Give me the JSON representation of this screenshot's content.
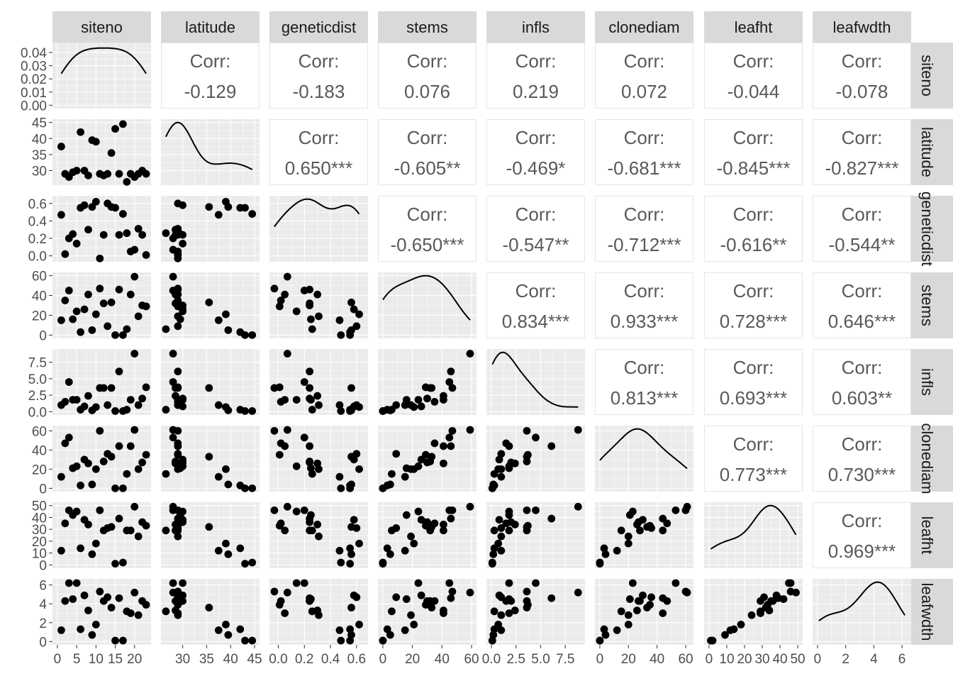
{
  "chart_data": {
    "type": "scatter",
    "variables": [
      "siteno",
      "latitude",
      "geneticdist",
      "stems",
      "infls",
      "clonediam",
      "leafht",
      "leafwdth"
    ],
    "labels": {
      "corr_prefix": "Corr:"
    },
    "correlations": [
      {
        "row": 0,
        "col": 1,
        "value": "-0.129"
      },
      {
        "row": 0,
        "col": 2,
        "value": "-0.183"
      },
      {
        "row": 0,
        "col": 3,
        "value": "0.076"
      },
      {
        "row": 0,
        "col": 4,
        "value": "0.219"
      },
      {
        "row": 0,
        "col": 5,
        "value": "0.072"
      },
      {
        "row": 0,
        "col": 6,
        "value": "-0.044"
      },
      {
        "row": 0,
        "col": 7,
        "value": "-0.078"
      },
      {
        "row": 1,
        "col": 2,
        "value": "0.650***"
      },
      {
        "row": 1,
        "col": 3,
        "value": "-0.605**"
      },
      {
        "row": 1,
        "col": 4,
        "value": "-0.469*"
      },
      {
        "row": 1,
        "col": 5,
        "value": "-0.681***"
      },
      {
        "row": 1,
        "col": 6,
        "value": "-0.845***"
      },
      {
        "row": 1,
        "col": 7,
        "value": "-0.827***"
      },
      {
        "row": 2,
        "col": 3,
        "value": "-0.650***"
      },
      {
        "row": 2,
        "col": 4,
        "value": "-0.547**"
      },
      {
        "row": 2,
        "col": 5,
        "value": "-0.712***"
      },
      {
        "row": 2,
        "col": 6,
        "value": "-0.616**"
      },
      {
        "row": 2,
        "col": 7,
        "value": "-0.544**"
      },
      {
        "row": 3,
        "col": 4,
        "value": "0.834***"
      },
      {
        "row": 3,
        "col": 5,
        "value": "0.933***"
      },
      {
        "row": 3,
        "col": 6,
        "value": "0.728***"
      },
      {
        "row": 3,
        "col": 7,
        "value": "0.646***"
      },
      {
        "row": 4,
        "col": 5,
        "value": "0.813***"
      },
      {
        "row": 4,
        "col": 6,
        "value": "0.693***"
      },
      {
        "row": 4,
        "col": 7,
        "value": "0.603**"
      },
      {
        "row": 5,
        "col": 6,
        "value": "0.773***"
      },
      {
        "row": 5,
        "col": 7,
        "value": "0.730***"
      },
      {
        "row": 6,
        "col": 7,
        "value": "0.969***"
      }
    ],
    "axes": {
      "siteno": {
        "lim": [
          0,
          23
        ],
        "x_ticks": [
          0,
          5,
          10,
          15,
          20
        ],
        "x_tick_labels": [
          "0",
          "5",
          "10",
          "15",
          "20"
        ]
      },
      "latitude": {
        "lim": [
          26.5,
          45
        ],
        "x_ticks": [
          30,
          35,
          40,
          45
        ],
        "x_tick_labels": [
          "30",
          "35",
          "40",
          "45"
        ],
        "y_ticks": [
          30,
          35,
          40,
          45
        ],
        "y_tick_labels": [
          "30",
          "35",
          "40",
          "45"
        ]
      },
      "geneticdist": {
        "lim": [
          -0.03,
          0.65
        ],
        "x_ticks": [
          0,
          0.2,
          0.4,
          0.6
        ],
        "x_tick_labels": [
          "0.0",
          "0.2",
          "0.4",
          "0.6"
        ],
        "y_ticks": [
          0,
          0.2,
          0.4,
          0.6
        ],
        "y_tick_labels": [
          "0.0",
          "0.2",
          "0.4",
          "0.6"
        ]
      },
      "stems": {
        "lim": [
          0,
          60
        ],
        "x_ticks": [
          0,
          20,
          40,
          60
        ],
        "x_tick_labels": [
          "0",
          "20",
          "40",
          "60"
        ],
        "y_ticks": [
          0,
          20,
          40,
          60
        ],
        "y_tick_labels": [
          "0",
          "20",
          "40",
          "60"
        ]
      },
      "infls": {
        "lim": [
          0,
          9
        ],
        "x_ticks": [
          0,
          2.5,
          5,
          7.5
        ],
        "x_tick_labels": [
          "0.0",
          "2.5",
          "5.0",
          "7.5"
        ],
        "y_ticks": [
          0,
          2.5,
          5,
          7.5
        ],
        "y_tick_labels": [
          "0.0",
          "2.5",
          "5.0",
          "7.5"
        ]
      },
      "clonediam": {
        "lim": [
          0,
          62
        ],
        "x_ticks": [
          0,
          20,
          40,
          60
        ],
        "x_tick_labels": [
          "0",
          "20",
          "40",
          "60"
        ],
        "y_ticks": [
          0,
          20,
          40,
          60
        ],
        "y_tick_labels": [
          "0",
          "20",
          "40",
          "60"
        ]
      },
      "leafht": {
        "lim": [
          0,
          50
        ],
        "x_ticks": [
          0,
          10,
          20,
          30,
          40,
          50
        ],
        "x_tick_labels": [
          "0",
          "10",
          "20",
          "30",
          "40",
          "50"
        ],
        "y_ticks": [
          0,
          10,
          20,
          30,
          40,
          50
        ],
        "y_tick_labels": [
          "0",
          "10",
          "20",
          "30",
          "40",
          "50"
        ]
      },
      "leafwdth": {
        "lim": [
          0,
          6.3
        ],
        "x_ticks": [
          0,
          2,
          4,
          6
        ],
        "x_tick_labels": [
          "0",
          "2",
          "4",
          "6"
        ],
        "y_ticks": [
          0,
          2,
          4,
          6
        ],
        "y_tick_labels": [
          "0",
          "2",
          "4",
          "6"
        ]
      }
    },
    "density_axis": {
      "lim": [
        0,
        0.045
      ],
      "ticks": [
        0,
        0.01,
        0.02,
        0.03,
        0.04
      ],
      "tick_labels": [
        "0.00",
        "0.01",
        "0.02",
        "0.03",
        "0.04"
      ]
    },
    "observations": [
      {
        "siteno": 1,
        "latitude": 37.5,
        "geneticdist": 0.47,
        "stems": 15,
        "infls": 1.0,
        "clonediam": 12,
        "leafht": 12,
        "leafwdth": 1.2
      },
      {
        "siteno": 2,
        "latitude": 29,
        "geneticdist": 0.02,
        "stems": 35,
        "infls": 1.5,
        "clonediam": 47,
        "leafht": 35,
        "leafwdth": 4.3
      },
      {
        "siteno": 3,
        "latitude": 28,
        "geneticdist": 0.2,
        "stems": 45,
        "infls": 4.5,
        "clonediam": 53,
        "leafht": 46,
        "leafwdth": 6.2
      },
      {
        "siteno": 4,
        "latitude": 29.5,
        "geneticdist": 0.25,
        "stems": 16,
        "infls": 1.8,
        "clonediam": 21,
        "leafht": 42,
        "leafwdth": 4.5
      },
      {
        "siteno": 5,
        "latitude": 30,
        "geneticdist": 0.14,
        "stems": 24,
        "infls": 1.8,
        "clonediam": 23,
        "leafht": 45,
        "leafwdth": 6.2
      },
      {
        "siteno": 6,
        "latitude": 42,
        "geneticdist": 0.55,
        "stems": 3,
        "infls": 0.3,
        "clonediam": 3,
        "leafht": 14,
        "leafwdth": 1.3
      },
      {
        "siteno": 7,
        "latitude": 30,
        "geneticdist": 0.58,
        "stems": 26,
        "infls": 0.8,
        "clonediam": 30,
        "leafht": 38,
        "leafwdth": 4.9
      },
      {
        "siteno": 8,
        "latitude": 28.5,
        "geneticdist": 0.3,
        "stems": 41,
        "infls": 2.4,
        "clonediam": 26,
        "leafht": 34,
        "leafwdth": 3.3
      },
      {
        "siteno": 9,
        "latitude": 39.5,
        "geneticdist": 0.56,
        "stems": 5,
        "infls": 0.2,
        "clonediam": 4,
        "leafht": 9,
        "leafwdth": 0.7
      },
      {
        "siteno": 10,
        "latitude": 39,
        "geneticdist": 0.62,
        "stems": 21,
        "infls": 0.7,
        "clonediam": 20,
        "leafht": 18,
        "leafwdth": 1.8
      },
      {
        "siteno": 11,
        "latitude": 29,
        "geneticdist": -0.03,
        "stems": 47,
        "infls": 3.6,
        "clonediam": 60,
        "leafht": 46,
        "leafwdth": 5.3
      },
      {
        "siteno": 12,
        "latitude": 28.5,
        "geneticdist": 0.24,
        "stems": 32,
        "infls": 3.6,
        "clonediam": 28,
        "leafht": 29,
        "leafwdth": 4.3
      },
      {
        "siteno": 13,
        "latitude": 29,
        "geneticdist": 0.6,
        "stems": 9,
        "infls": 1.0,
        "clonediam": 36,
        "leafht": 31,
        "leafwdth": 4.7
      },
      {
        "siteno": 14,
        "latitude": 35.5,
        "geneticdist": 0.56,
        "stems": 33,
        "infls": 3.6,
        "clonediam": 33,
        "leafht": 32,
        "leafwdth": 3.6
      },
      {
        "siteno": 15,
        "latitude": 43,
        "geneticdist": 0.55,
        "stems": 0,
        "infls": 0.1,
        "clonediam": 0,
        "leafht": 1,
        "leafwdth": 0.1
      },
      {
        "siteno": 16,
        "latitude": 29,
        "geneticdist": 0.24,
        "stems": 46,
        "infls": 6.1,
        "clonediam": 44,
        "leafht": 39,
        "leafwdth": 4.6
      },
      {
        "siteno": 17,
        "latitude": 44.5,
        "geneticdist": 0.48,
        "stems": 0,
        "infls": 0.1,
        "clonediam": 0,
        "leafht": 2,
        "leafwdth": 0.1
      },
      {
        "siteno": 18,
        "latitude": 26.5,
        "geneticdist": 0.26,
        "stems": 6,
        "infls": 0.3,
        "clonediam": 15,
        "leafht": 29,
        "leafwdth": 3.2
      },
      {
        "siteno": 19,
        "latitude": 29,
        "geneticdist": 0.05,
        "stems": 41,
        "infls": 1.8,
        "clonediam": 44,
        "leafht": 29,
        "leafwdth": 3.0
      },
      {
        "siteno": 20,
        "latitude": 28,
        "geneticdist": 0.07,
        "stems": 59,
        "infls": 8.8,
        "clonediam": 61,
        "leafht": 49,
        "leafwdth": 5.2
      },
      {
        "siteno": 21,
        "latitude": 29,
        "geneticdist": 0.31,
        "stems": 19,
        "infls": 1.0,
        "clonediam": 20,
        "leafht": 24,
        "leafwdth": 2.8
      },
      {
        "siteno": 22,
        "latitude": 30,
        "geneticdist": 0.24,
        "stems": 30,
        "infls": 2.0,
        "clonediam": 27,
        "leafht": 36,
        "leafwdth": 4.3
      },
      {
        "siteno": 23,
        "latitude": 29,
        "geneticdist": 0.01,
        "stems": 29,
        "infls": 3.7,
        "clonediam": 35,
        "leafht": 33,
        "leafwdth": 3.9
      }
    ]
  }
}
